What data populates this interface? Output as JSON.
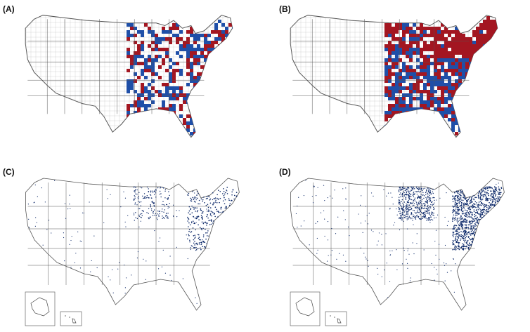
{
  "panels": [
    {
      "label": "(A)",
      "style": "county-choropleth",
      "state_lines": true
    },
    {
      "label": "(B)",
      "style": "county-choropleth",
      "state_lines": true
    },
    {
      "label": "(C)",
      "style": "dot-density",
      "state_lines": true,
      "insets": [
        "alaska",
        "hawaii"
      ]
    },
    {
      "label": "(D)",
      "style": "dot-density",
      "state_lines": true,
      "insets": [
        "alaska",
        "hawaii"
      ]
    }
  ],
  "colors": {
    "choropleth_red": "#a31621",
    "choropleth_blue": "#1f4fa8",
    "dot_navy": "#0f2b6b",
    "outline": "#555555",
    "county_grid": "#bdbdbd"
  }
}
